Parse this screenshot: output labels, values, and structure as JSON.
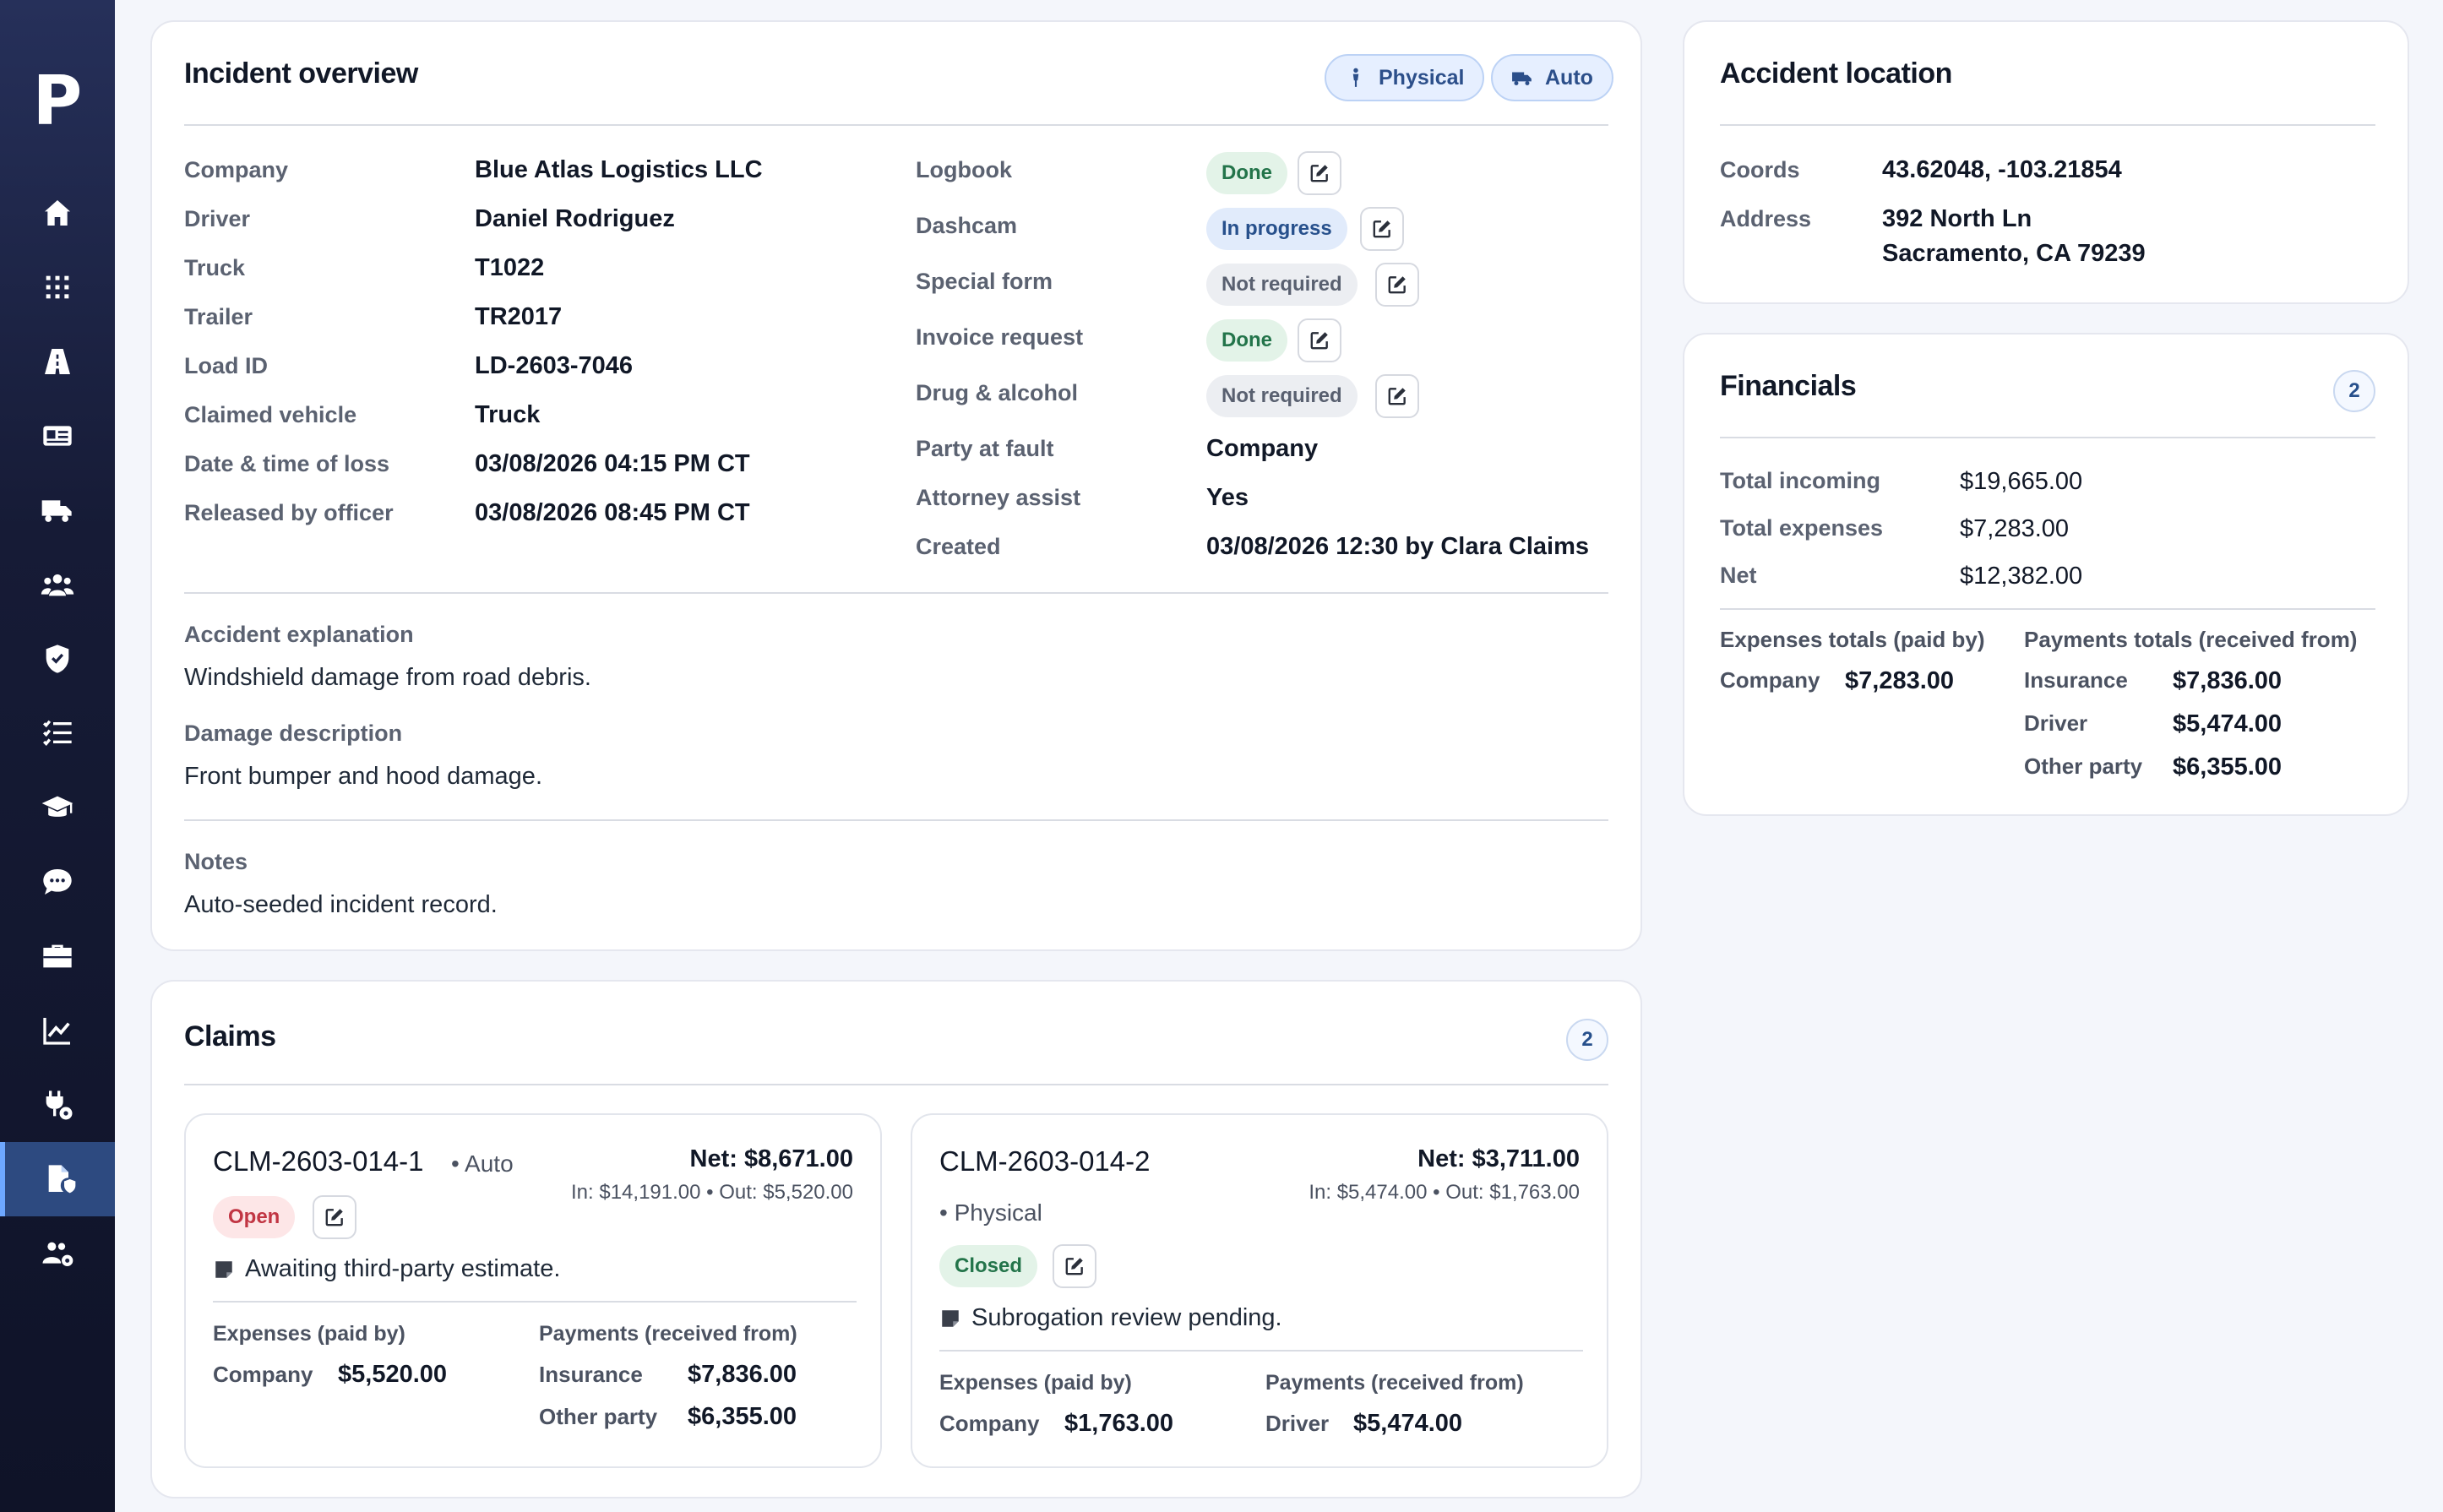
{
  "sidebar": {
    "logo": "P",
    "items": [
      {
        "icon": "home-icon"
      },
      {
        "icon": "grid-icon"
      },
      {
        "icon": "road-icon"
      },
      {
        "icon": "id-card-icon"
      },
      {
        "icon": "truck-icon"
      },
      {
        "icon": "users-icon"
      },
      {
        "icon": "shield-icon"
      },
      {
        "icon": "checklist-icon"
      },
      {
        "icon": "graduation-cap-icon"
      },
      {
        "icon": "sms-icon"
      },
      {
        "icon": "briefcase-icon"
      },
      {
        "icon": "chart-line-icon"
      },
      {
        "icon": "plug-gear-icon"
      },
      {
        "icon": "claims-file-icon",
        "active": true
      },
      {
        "icon": "users-gear-icon"
      }
    ]
  },
  "incident": {
    "title": "Incident overview",
    "tags": [
      "Physical",
      "Auto"
    ],
    "left_fields": [
      {
        "label": "Company",
        "value": "Blue Atlas Logistics LLC"
      },
      {
        "label": "Driver",
        "value": "Daniel Rodriguez"
      },
      {
        "label": "Truck",
        "value": "T1022"
      },
      {
        "label": "Trailer",
        "value": "TR2017"
      },
      {
        "label": "Load ID",
        "value": "LD-2603-7046"
      },
      {
        "label": "Claimed vehicle",
        "value": "Truck"
      },
      {
        "label": "Date & time of loss",
        "value": "03/08/2026 04:15 PM CT"
      },
      {
        "label": "Released by officer",
        "value": "03/08/2026 08:45 PM CT"
      }
    ],
    "status_fields": [
      {
        "label": "Logbook",
        "status": "Done"
      },
      {
        "label": "Dashcam",
        "status": "In progress"
      },
      {
        "label": "Special form",
        "status": "Not required"
      },
      {
        "label": "Invoice request",
        "status": "Done"
      },
      {
        "label": "Drug & alcohol",
        "status": "Not required"
      }
    ],
    "right_fields": [
      {
        "label": "Party at fault",
        "value": "Company"
      },
      {
        "label": "Attorney assist",
        "value": "Yes"
      },
      {
        "label": "Created",
        "value": "03/08/2026 12:30 by Clara Claims"
      }
    ],
    "explanation_label": "Accident explanation",
    "explanation": "Windshield damage from road debris.",
    "damage_label": "Damage description",
    "damage": "Front bumper and hood damage.",
    "notes_label": "Notes",
    "notes": "Auto-seeded incident record."
  },
  "location": {
    "title": "Accident location",
    "coords_label": "Coords",
    "coords": "43.62048, -103.21854",
    "address_label": "Address",
    "address_line1": "392 North Ln",
    "address_line2": "Sacramento, CA 79239"
  },
  "financials": {
    "title": "Financials",
    "count": "2",
    "total_incoming_label": "Total incoming",
    "total_incoming": "$19,665.00",
    "total_expenses_label": "Total expenses",
    "total_expenses": "$7,283.00",
    "net_label": "Net",
    "net": "$12,382.00",
    "expenses_heading": "Expenses totals (paid by)",
    "expenses": [
      {
        "label": "Company",
        "value": "$7,283.00"
      }
    ],
    "payments_heading": "Payments totals (received from)",
    "payments": [
      {
        "label": "Insurance",
        "value": "$7,836.00"
      },
      {
        "label": "Driver",
        "value": "$5,474.00"
      },
      {
        "label": "Other party",
        "value": "$6,355.00"
      }
    ]
  },
  "claims": {
    "title": "Claims",
    "count": "2",
    "items": [
      {
        "id": "CLM-2603-014-1",
        "type": "• Auto",
        "net": "Net: $8,671.00",
        "inout": "In: $14,191.00 • Out: $5,520.00",
        "status": "Open",
        "note": "Awaiting third-party estimate.",
        "expenses_heading": "Expenses (paid by)",
        "expenses": [
          {
            "label": "Company",
            "value": "$5,520.00"
          }
        ],
        "payments_heading": "Payments (received from)",
        "payments": [
          {
            "label": "Insurance",
            "value": "$7,836.00"
          },
          {
            "label": "Other party",
            "value": "$6,355.00"
          }
        ]
      },
      {
        "id": "CLM-2603-014-2",
        "type": "• Physical",
        "net": "Net: $3,711.00",
        "inout": "In: $5,474.00 • Out: $1,763.00",
        "status": "Closed",
        "note": "Subrogation review pending.",
        "expenses_heading": "Expenses (paid by)",
        "expenses": [
          {
            "label": "Company",
            "value": "$1,763.00"
          }
        ],
        "payments_heading": "Payments (received from)",
        "payments": [
          {
            "label": "Driver",
            "value": "$5,474.00"
          }
        ]
      }
    ]
  },
  "colors": {
    "sidebar_top": "#26305a",
    "sidebar_bottom": "#0f1328",
    "accent": "#2c4f8a",
    "done": "#23744a",
    "open": "#c13543"
  }
}
